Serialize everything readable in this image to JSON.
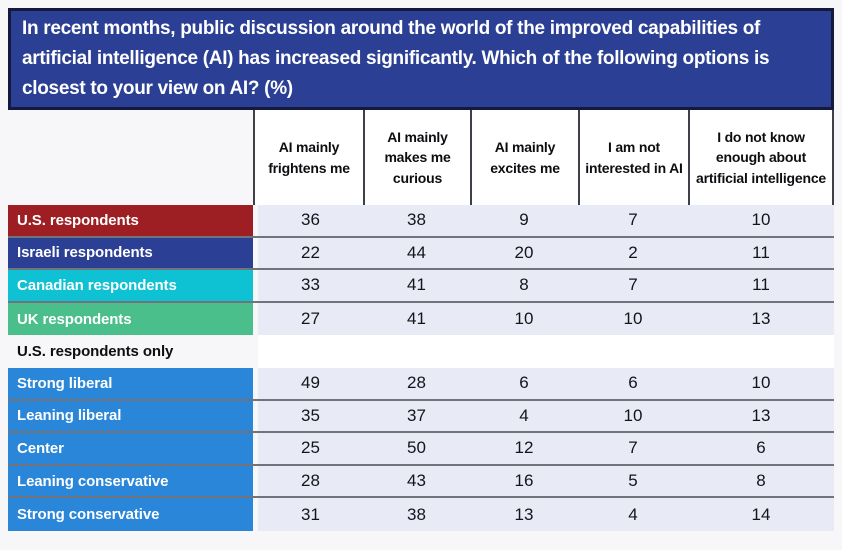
{
  "header": {
    "title": "In recent months, public discussion around the world of the improved capabilities of artificial intelligence (AI) has increased significantly. Which of the following options is closest to your view on AI? (%)"
  },
  "colors": {
    "page_bg": "#f7f7fa",
    "question_panel_bg": "#2b3f94",
    "question_panel_border": "#131a3d",
    "data_cell_bg": "#e8eaf6",
    "us_row": "#9e1f23",
    "israel_row": "#2b3f94",
    "canada_row": "#0fc2d3",
    "uk_row": "#4abe8b",
    "political_rows": "#2a86d8"
  },
  "chart_data": {
    "type": "table",
    "title": "In recent months, public discussion around the world of the improved capabilities of artificial intelligence (AI) has increased significantly. Which of the following options is closest to your view on AI? (%)",
    "units": "percent",
    "columns": [
      "AI mainly frightens me",
      "AI mainly makes me curious",
      "AI mainly excites me",
      "I am not interested in AI",
      "I do not know enough about artificial intelligence"
    ],
    "rows": [
      {
        "label": "U.S. respondents",
        "color": "#9e1f23",
        "values": [
          36,
          38,
          9,
          7,
          10
        ]
      },
      {
        "label": "Israeli respondents",
        "color": "#2b3f94",
        "values": [
          22,
          44,
          20,
          2,
          11
        ]
      },
      {
        "label": "Canadian respondents",
        "color": "#0fc2d3",
        "values": [
          33,
          41,
          8,
          7,
          11
        ]
      },
      {
        "label": "UK respondents",
        "color": "#4abe8b",
        "values": [
          27,
          41,
          10,
          10,
          13
        ]
      },
      {
        "label": "U.S. respondents only",
        "type": "subheader",
        "values": []
      },
      {
        "label": "Strong liberal",
        "color": "#2a86d8",
        "values": [
          49,
          28,
          6,
          6,
          10
        ]
      },
      {
        "label": "Leaning liberal",
        "color": "#2a86d8",
        "values": [
          35,
          37,
          4,
          10,
          13
        ]
      },
      {
        "label": "Center",
        "color": "#2a86d8",
        "values": [
          25,
          50,
          12,
          7,
          6
        ]
      },
      {
        "label": "Leaning conservative",
        "color": "#2a86d8",
        "values": [
          28,
          43,
          16,
          5,
          8
        ]
      },
      {
        "label": "Strong conservative",
        "color": "#2a86d8",
        "values": [
          31,
          38,
          13,
          4,
          14
        ]
      }
    ]
  }
}
